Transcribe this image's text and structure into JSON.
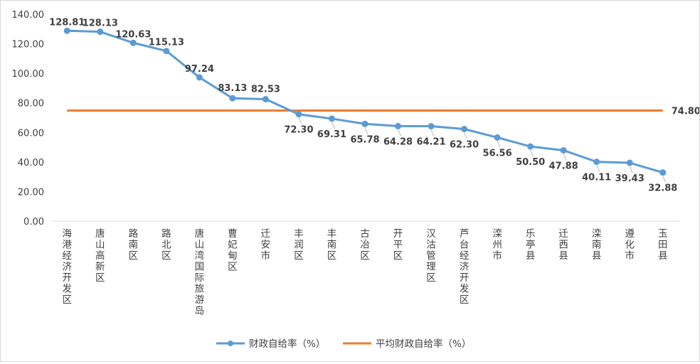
{
  "chart_data": {
    "type": "line",
    "categories": [
      "海港经济开发区",
      "唐山高新区",
      "路南区",
      "路北区",
      "唐山湾国际旅游岛",
      "曹妃甸区",
      "迁安市",
      "丰润区",
      "丰南区",
      "古冶区",
      "开平区",
      "汉沽管理区",
      "芦台经济开发区",
      "滦州市",
      "乐亭县",
      "迁西县",
      "滦南县",
      "遵化市",
      "玉田县"
    ],
    "series": [
      {
        "name": "财政自给率（%）",
        "color": "#5b9bd5",
        "values": [
          128.81,
          128.13,
          120.63,
          115.13,
          97.24,
          83.13,
          82.53,
          72.3,
          69.31,
          65.78,
          64.28,
          64.21,
          62.3,
          56.56,
          50.5,
          47.88,
          40.11,
          39.43,
          32.88
        ],
        "labels": [
          "128.81",
          "128.13",
          "120.63",
          "115.13",
          "97.24",
          "83.13",
          "82.53",
          "72.30",
          "69.31",
          "65.78",
          "64.28",
          "64.21",
          "62.30",
          "56.56",
          "50.50",
          "47.88",
          "40.11",
          "39.43",
          "32.88"
        ]
      },
      {
        "name": "平均财政自给率（%）",
        "color": "#ed7d31",
        "value": 74.8,
        "label": "74.80"
      }
    ],
    "ylim": [
      0,
      140
    ],
    "yticks": [
      "0.00",
      "20.00",
      "40.00",
      "60.00",
      "80.00",
      "100.00",
      "120.00",
      "140.00"
    ],
    "legend": "bottom"
  }
}
